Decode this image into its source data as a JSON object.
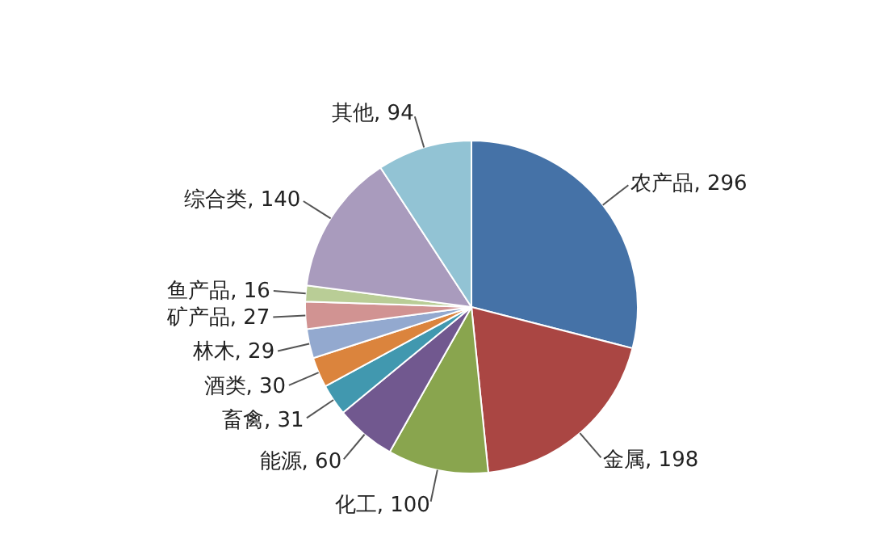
{
  "chart_data": {
    "type": "pie",
    "categories": [
      "农产品",
      "金属",
      "化工",
      "能源",
      "畜禽",
      "酒类",
      "林木",
      "矿产品",
      "鱼产品",
      "综合类",
      "其他"
    ],
    "values": [
      296,
      198,
      100,
      60,
      31,
      30,
      29,
      27,
      16,
      140,
      94
    ],
    "value_labels": [
      ", 296",
      ", 198",
      ", 100",
      ", 60",
      ", 31",
      ", 30",
      ", 29",
      ", 27",
      ", 16",
      ", 140",
      ", 94"
    ],
    "colors": [
      "#4572a7",
      "#aa4643",
      "#89a54e",
      "#71588f",
      "#4198af",
      "#db843d",
      "#93a9cf",
      "#d19392",
      "#b9cd96",
      "#a99bbd",
      "#92c3d4"
    ],
    "legend": false
  }
}
